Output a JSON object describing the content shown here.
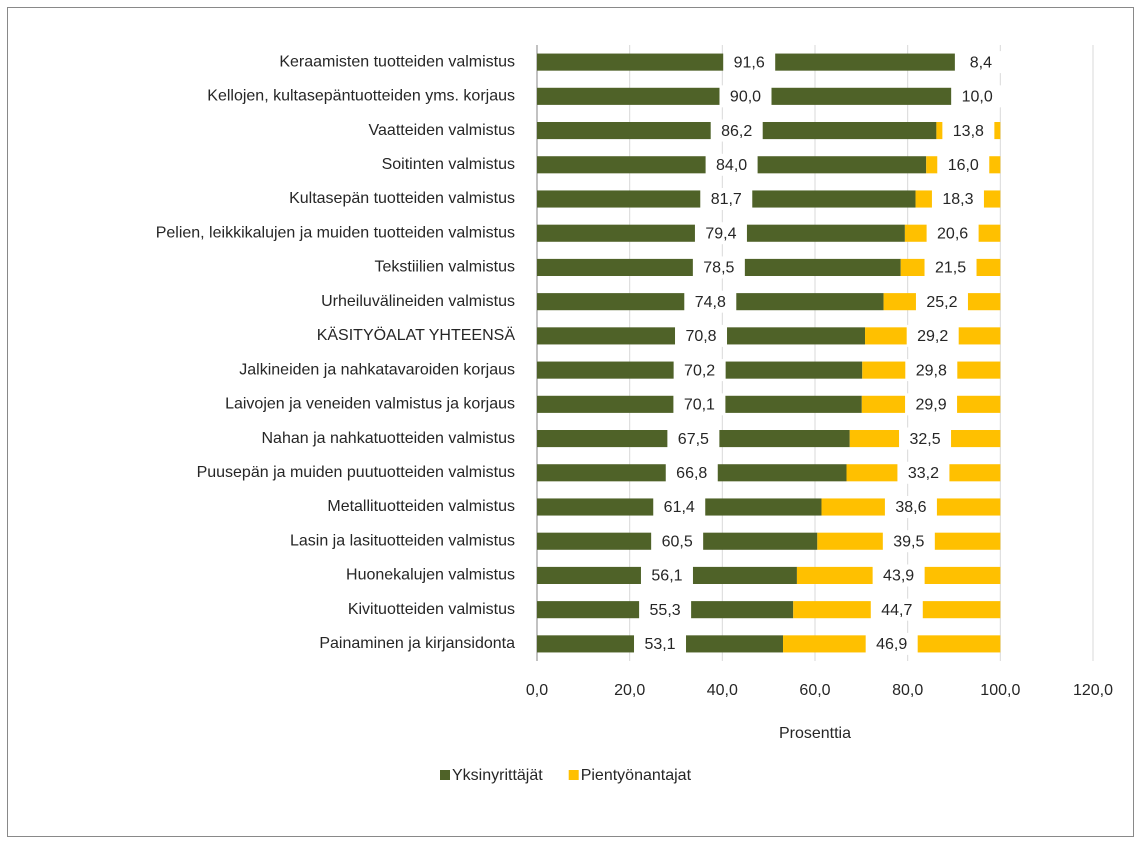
{
  "chart_data": {
    "type": "stacked-bar-horizontal",
    "categories": [
      "Keraamisten tuotteiden valmistus",
      "Kellojen, kultasepäntuotteiden yms. korjaus",
      "Vaatteiden valmistus",
      "Soitinten valmistus",
      "Kultasepän tuotteiden valmistus",
      "Pelien, leikkikalujen ja muiden tuotteiden valmistus",
      "Tekstiilien valmistus",
      "Urheiluvälineiden valmistus",
      "KÄSITYÖALAT YHTEENSÄ",
      "Jalkineiden ja nahkatavaroiden korjaus",
      "Laivojen ja veneiden valmistus ja korjaus",
      "Nahan ja nahkatuotteiden valmistus",
      "Puusepän ja muiden puutuotteiden valmistus",
      "Metallituotteiden valmistus",
      "Lasin ja lasituotteiden valmistus",
      "Huonekalujen valmistus",
      "Kivituotteiden valmistus",
      "Painaminen ja kirjansidonta"
    ],
    "series": [
      {
        "name": "Yksinyrittäjät",
        "color": "#4f6228",
        "values": [
          91.6,
          90.0,
          86.2,
          84.0,
          81.7,
          79.4,
          78.5,
          74.8,
          70.8,
          70.2,
          70.1,
          67.5,
          66.8,
          61.4,
          60.5,
          56.1,
          55.3,
          53.1
        ],
        "value_labels": [
          "91,6",
          "90,0",
          "86,2",
          "84,0",
          "81,7",
          "79,4",
          "78,5",
          "74,8",
          "70,8",
          "70,2",
          "70,1",
          "67,5",
          "66,8",
          "61,4",
          "60,5",
          "56,1",
          "55,3",
          "53,1"
        ]
      },
      {
        "name": "Pientyönantajat",
        "color": "#ffc000",
        "values": [
          8.4,
          10.0,
          13.8,
          16.0,
          18.3,
          20.6,
          21.5,
          25.2,
          29.2,
          29.8,
          29.9,
          32.5,
          33.2,
          38.6,
          39.5,
          43.9,
          44.7,
          46.9
        ],
        "value_labels": [
          "8,4",
          "10,0",
          "13,8",
          "16,0",
          "18,3",
          "20,6",
          "21,5",
          "25,2",
          "29,2",
          "29,8",
          "29,9",
          "32,5",
          "33,2",
          "38,6",
          "39,5",
          "43,9",
          "44,7",
          "46,9"
        ]
      }
    ],
    "x_label": "Prosenttia",
    "xlim": [
      0,
      120
    ],
    "xticks": [
      {
        "value": 0,
        "label": "0,0"
      },
      {
        "value": 20,
        "label": "20,0"
      },
      {
        "value": 40,
        "label": "40,0"
      },
      {
        "value": 60,
        "label": "60,0"
      },
      {
        "value": 80,
        "label": "80,0"
      },
      {
        "value": 100,
        "label": "100,0"
      },
      {
        "value": 120,
        "label": "120,0"
      }
    ],
    "grid": true,
    "legend": "bottom"
  }
}
